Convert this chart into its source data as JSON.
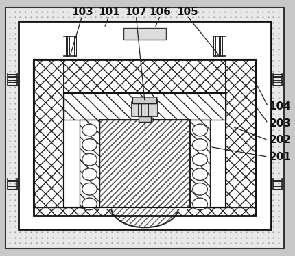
{
  "fig_w": 4.3,
  "fig_h": 3.74,
  "dpi": 100,
  "bg_color": "#c8c8c8",
  "dot_color": "#999999",
  "label_104": "104",
  "label_203": "203",
  "label_202": "202",
  "label_201": "201",
  "label_103": "103",
  "label_101": "101",
  "label_107": "107",
  "label_106": "106",
  "label_105": "105"
}
